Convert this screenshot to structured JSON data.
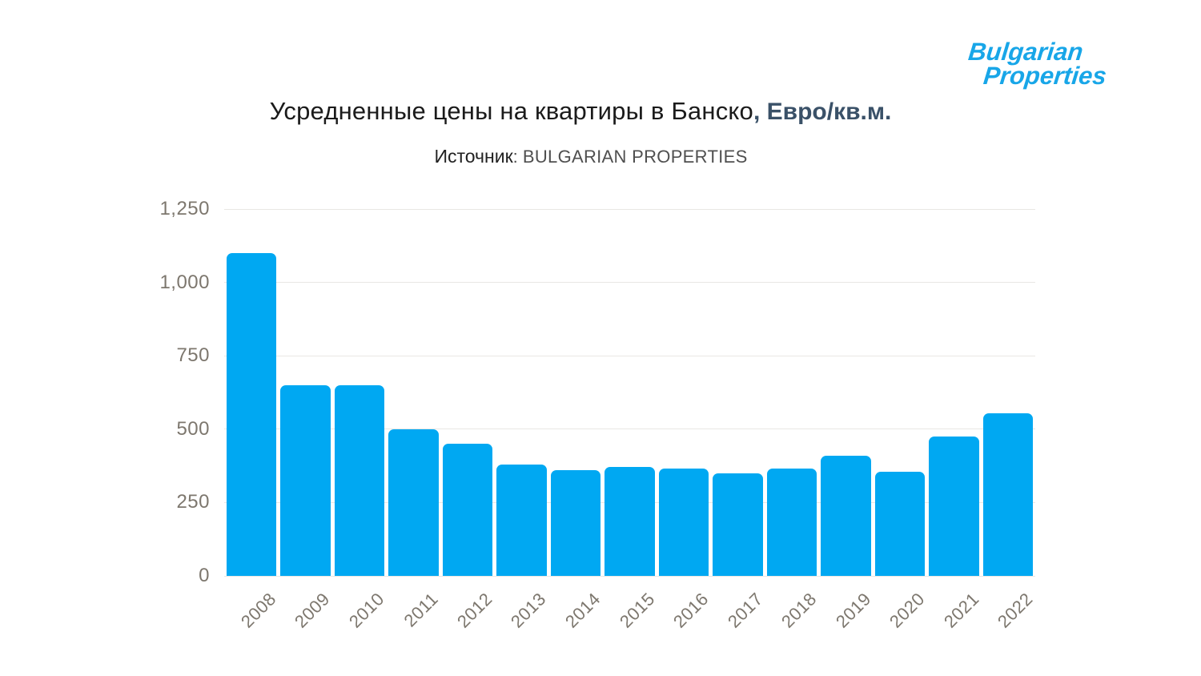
{
  "logo": {
    "line1": "Bulgarian",
    "line2": "Properties",
    "color": "#18a6e8"
  },
  "title": {
    "main": "Усредненные цены на квартиры в Банско",
    "suffix": ", Евро/кв.м.",
    "main_color": "#1b1b1b",
    "suffix_color": "#3a5168"
  },
  "subtitle": {
    "label": "Источник",
    "separator": ": ",
    "value": "BULGARIAN PROPERTIES"
  },
  "chart_data": {
    "type": "bar",
    "title": "Усредненные цены на квартиры в Банско, Евро/кв.м.",
    "source": "BULGARIAN PROPERTIES",
    "categories": [
      "2008",
      "2009",
      "2010",
      "2011",
      "2012",
      "2013",
      "2014",
      "2015",
      "2016",
      "2017",
      "2018",
      "2019",
      "2020",
      "2021",
      "2022"
    ],
    "values": [
      1100,
      650,
      650,
      500,
      450,
      380,
      360,
      370,
      365,
      350,
      365,
      410,
      355,
      475,
      555
    ],
    "xlabel": "",
    "ylabel": "",
    "ylim": [
      0,
      1250
    ],
    "y_ticks": [
      0,
      250,
      500,
      750,
      1000,
      1250
    ],
    "y_tick_labels": [
      "0",
      "250",
      "500",
      "750",
      "1,000",
      "1,250"
    ],
    "grid": true,
    "legend": false,
    "bar_color": "#00a8f2",
    "grid_color": "#e9e7e4",
    "tick_label_color": "#7d776e"
  }
}
